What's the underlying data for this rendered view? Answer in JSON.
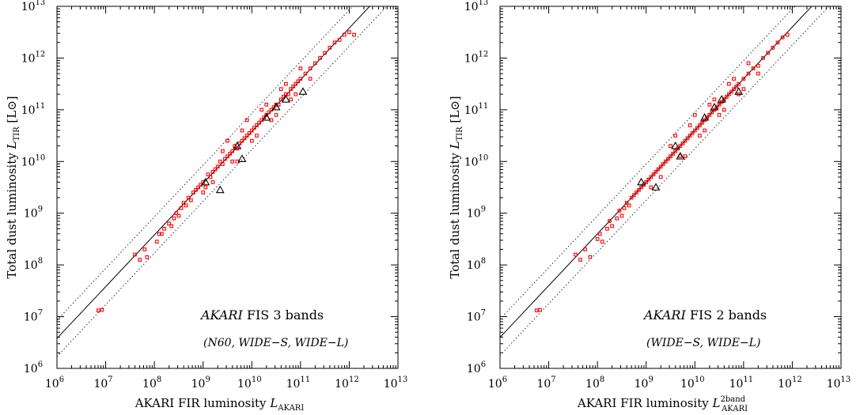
{
  "chart_data": [
    {
      "type": "scatter",
      "xlim": [
        1000000.0,
        10000000000000.0
      ],
      "ylim": [
        1000000.0,
        10000000000000.0
      ],
      "log_x": true,
      "log_y": true,
      "x_ticks": [
        6,
        7,
        8,
        9,
        10,
        11,
        12,
        13
      ],
      "y_ticks": [
        6,
        7,
        8,
        9,
        10,
        11,
        12,
        13
      ],
      "tick_base": "10",
      "xlabel_prefix": "AKARI FIR luminosity ",
      "xlabel_symbol": "L",
      "xlabel_sub": "AKARI",
      "xlabel_sup": "",
      "ylabel_prefix": "Total dust luminosity ",
      "ylabel_symbol": "L",
      "ylabel_sub": "TIR",
      "ylabel_unit": "[L⊙]",
      "annotation_title_italic": "AKARI",
      "annotation_title_rest": " FIS 3 bands",
      "annotation_bands": "(N60, WIDE−S, WIDE−L)",
      "relation_offset_dex": 0.58,
      "scatter_dex": 0.35,
      "series": [
        {
          "marker": "square",
          "color": "#ff0000",
          "points": [
            [
              6.85,
              7.12
            ],
            [
              6.92,
              7.13
            ],
            [
              7.6,
              8.2
            ],
            [
              7.7,
              8.1
            ],
            [
              7.8,
              8.3
            ],
            [
              7.85,
              8.15
            ],
            [
              8.05,
              8.45
            ],
            [
              8.1,
              8.6
            ],
            [
              8.15,
              8.6
            ],
            [
              8.2,
              8.7
            ],
            [
              8.3,
              8.8
            ],
            [
              8.35,
              8.75
            ],
            [
              8.4,
              8.9
            ],
            [
              8.45,
              9.0
            ],
            [
              8.5,
              8.95
            ],
            [
              8.55,
              9.1
            ],
            [
              8.6,
              9.2
            ],
            [
              8.65,
              9.15
            ],
            [
              8.7,
              9.3
            ],
            [
              8.75,
              9.25
            ],
            [
              8.8,
              9.4
            ],
            [
              8.85,
              9.45
            ],
            [
              8.9,
              9.5
            ],
            [
              8.95,
              9.55
            ],
            [
              9.0,
              9.6
            ],
            [
              9.05,
              9.5
            ],
            [
              9.1,
              9.75
            ],
            [
              9.15,
              9.7
            ],
            [
              9.2,
              9.8
            ],
            [
              9.25,
              9.85
            ],
            [
              9.3,
              9.9
            ],
            [
              9.35,
              10.0
            ],
            [
              9.4,
              9.95
            ],
            [
              9.45,
              10.05
            ],
            [
              9.5,
              10.1
            ],
            [
              9.55,
              10.15
            ],
            [
              9.6,
              10.2
            ],
            [
              9.65,
              10.3
            ],
            [
              9.7,
              10.25
            ],
            [
              9.75,
              10.35
            ],
            [
              9.8,
              10.4
            ],
            [
              9.85,
              10.45
            ],
            [
              9.9,
              10.5
            ],
            [
              9.95,
              10.55
            ],
            [
              10.0,
              10.6
            ],
            [
              10.05,
              10.65
            ],
            [
              10.1,
              10.7
            ],
            [
              10.15,
              10.75
            ],
            [
              10.2,
              10.8
            ],
            [
              10.25,
              10.85
            ],
            [
              10.3,
              10.9
            ],
            [
              10.35,
              10.95
            ],
            [
              10.4,
              11.0
            ],
            [
              10.45,
              11.05
            ],
            [
              10.5,
              11.1
            ],
            [
              10.55,
              11.1
            ],
            [
              10.6,
              11.2
            ],
            [
              10.65,
              11.25
            ],
            [
              10.7,
              11.3
            ],
            [
              10.75,
              11.3
            ],
            [
              10.8,
              11.4
            ],
            [
              10.85,
              11.45
            ],
            [
              10.9,
              11.5
            ],
            [
              10.95,
              11.55
            ],
            [
              11.0,
              11.6
            ],
            [
              11.1,
              11.7
            ],
            [
              11.2,
              11.8
            ],
            [
              11.3,
              11.9
            ],
            [
              11.4,
              12.0
            ],
            [
              11.5,
              12.1
            ],
            [
              11.6,
              12.2
            ],
            [
              11.7,
              12.3
            ],
            [
              11.8,
              12.35
            ],
            [
              11.9,
              12.45
            ],
            [
              12.0,
              12.5
            ],
            [
              12.1,
              12.45
            ],
            [
              9.0,
              9.4
            ],
            [
              9.2,
              9.6
            ],
            [
              9.4,
              10.2
            ],
            [
              9.6,
              10.0
            ],
            [
              9.8,
              10.6
            ],
            [
              10.0,
              10.4
            ],
            [
              10.2,
              11.0
            ],
            [
              10.4,
              10.8
            ],
            [
              10.6,
              11.4
            ],
            [
              10.8,
              11.2
            ],
            [
              11.0,
              11.8
            ],
            [
              11.2,
              11.6
            ],
            [
              9.5,
              10.4
            ],
            [
              9.7,
              10.0
            ],
            [
              9.9,
              10.8
            ],
            [
              10.1,
              10.5
            ],
            [
              10.3,
              11.1
            ],
            [
              10.5,
              10.9
            ],
            [
              10.7,
              11.5
            ],
            [
              10.9,
              11.3
            ]
          ]
        },
        {
          "marker": "triangle",
          "color": "#000000",
          "points": [
            [
              9.05,
              9.6
            ],
            [
              9.35,
              9.45
            ],
            [
              9.7,
              10.3
            ],
            [
              9.8,
              10.05
            ],
            [
              10.3,
              10.85
            ],
            [
              10.5,
              11.05
            ],
            [
              10.7,
              11.2
            ],
            [
              11.05,
              11.35
            ]
          ]
        }
      ]
    },
    {
      "type": "scatter",
      "xlim": [
        1000000.0,
        10000000000000.0
      ],
      "ylim": [
        1000000.0,
        10000000000000.0
      ],
      "log_x": true,
      "log_y": true,
      "x_ticks": [
        6,
        7,
        8,
        9,
        10,
        11,
        12,
        13
      ],
      "y_ticks": [
        6,
        7,
        8,
        9,
        10,
        11,
        12,
        13
      ],
      "tick_base": "10",
      "xlabel_prefix": "AKARI FIR luminosity ",
      "xlabel_symbol": "L",
      "xlabel_sub": "AKARI",
      "xlabel_sup": "2band",
      "ylabel_prefix": "Total dust luminosity ",
      "ylabel_symbol": "L",
      "ylabel_sub": "TIR",
      "ylabel_unit": "[L⊙]",
      "annotation_title_italic": "AKARI",
      "annotation_title_rest": " FIS 2 bands",
      "annotation_bands": "(WIDE−S, WIDE−L)",
      "relation_offset_dex": 0.6,
      "scatter_dex": 0.35,
      "series": [
        {
          "marker": "square",
          "color": "#ff0000",
          "points": [
            [
              6.75,
              7.12
            ],
            [
              6.82,
              7.13
            ],
            [
              7.55,
              8.2
            ],
            [
              7.65,
              8.1
            ],
            [
              7.75,
              8.3
            ],
            [
              7.85,
              8.15
            ],
            [
              8.0,
              8.5
            ],
            [
              8.05,
              8.6
            ],
            [
              8.1,
              8.45
            ],
            [
              8.2,
              8.7
            ],
            [
              8.25,
              8.85
            ],
            [
              8.3,
              8.75
            ],
            [
              8.4,
              8.9
            ],
            [
              8.45,
              9.05
            ],
            [
              8.5,
              8.95
            ],
            [
              8.55,
              9.1
            ],
            [
              8.6,
              9.2
            ],
            [
              8.65,
              9.15
            ],
            [
              8.7,
              9.3
            ],
            [
              8.75,
              9.35
            ],
            [
              8.8,
              9.4
            ],
            [
              8.85,
              9.45
            ],
            [
              8.9,
              9.5
            ],
            [
              8.95,
              9.55
            ],
            [
              9.0,
              9.6
            ],
            [
              9.05,
              9.65
            ],
            [
              9.1,
              9.7
            ],
            [
              9.15,
              9.75
            ],
            [
              9.2,
              9.8
            ],
            [
              9.25,
              9.85
            ],
            [
              9.3,
              9.9
            ],
            [
              9.35,
              9.95
            ],
            [
              9.4,
              10.0
            ],
            [
              9.45,
              10.05
            ],
            [
              9.5,
              10.1
            ],
            [
              9.55,
              10.15
            ],
            [
              9.6,
              10.2
            ],
            [
              9.65,
              10.25
            ],
            [
              9.7,
              10.3
            ],
            [
              9.75,
              10.35
            ],
            [
              9.8,
              10.4
            ],
            [
              9.85,
              10.45
            ],
            [
              9.9,
              10.5
            ],
            [
              9.95,
              10.55
            ],
            [
              10.0,
              10.6
            ],
            [
              10.05,
              10.65
            ],
            [
              10.1,
              10.7
            ],
            [
              10.15,
              10.75
            ],
            [
              10.2,
              10.8
            ],
            [
              10.25,
              10.85
            ],
            [
              10.3,
              10.9
            ],
            [
              10.35,
              10.95
            ],
            [
              10.4,
              11.0
            ],
            [
              10.45,
              11.05
            ],
            [
              10.5,
              11.1
            ],
            [
              10.55,
              11.15
            ],
            [
              10.6,
              11.2
            ],
            [
              10.65,
              11.25
            ],
            [
              10.7,
              11.3
            ],
            [
              10.75,
              11.35
            ],
            [
              10.8,
              11.4
            ],
            [
              10.85,
              11.45
            ],
            [
              10.9,
              11.5
            ],
            [
              11.0,
              11.6
            ],
            [
              11.1,
              11.7
            ],
            [
              11.2,
              11.8
            ],
            [
              11.3,
              11.85
            ],
            [
              11.4,
              12.0
            ],
            [
              11.5,
              12.1
            ],
            [
              11.6,
              12.2
            ],
            [
              11.7,
              12.3
            ],
            [
              11.8,
              12.4
            ],
            [
              11.9,
              12.45
            ],
            [
              9.1,
              9.5
            ],
            [
              9.3,
              9.7
            ],
            [
              9.5,
              10.3
            ],
            [
              9.7,
              10.1
            ],
            [
              9.9,
              10.7
            ],
            [
              10.1,
              10.5
            ],
            [
              10.3,
              11.1
            ],
            [
              10.5,
              10.9
            ],
            [
              10.7,
              11.5
            ],
            [
              10.9,
              11.3
            ],
            [
              11.1,
              11.9
            ],
            [
              11.3,
              11.7
            ],
            [
              9.6,
              10.5
            ],
            [
              9.8,
              10.1
            ],
            [
              10.0,
              10.9
            ],
            [
              10.2,
              10.6
            ],
            [
              10.4,
              11.2
            ],
            [
              10.6,
              11.0
            ],
            [
              10.8,
              11.6
            ],
            [
              11.0,
              11.4
            ]
          ]
        },
        {
          "marker": "triangle",
          "color": "#000000",
          "points": [
            [
              8.9,
              9.6
            ],
            [
              9.2,
              9.5
            ],
            [
              9.6,
              10.3
            ],
            [
              9.7,
              10.1
            ],
            [
              10.2,
              10.85
            ],
            [
              10.4,
              11.05
            ],
            [
              10.55,
              11.2
            ],
            [
              10.9,
              11.35
            ]
          ]
        }
      ]
    }
  ]
}
